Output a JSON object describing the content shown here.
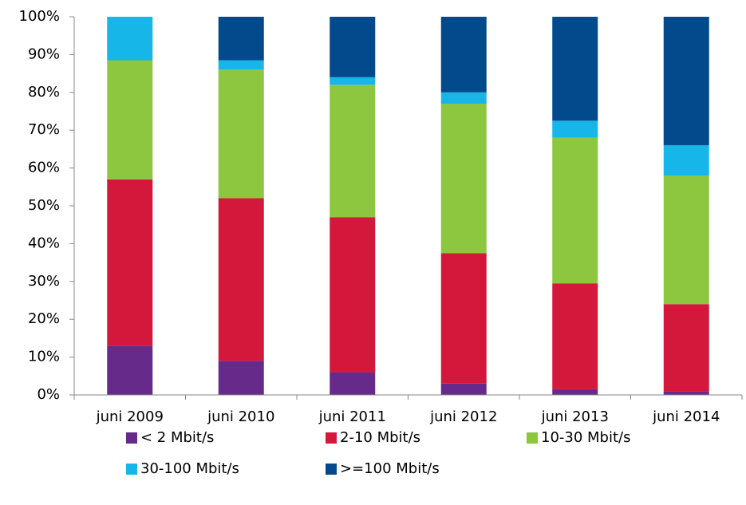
{
  "chart_data": {
    "type": "stacked_bar",
    "categories": [
      "juni 2009",
      "juni 2010",
      "juni 2011",
      "juni 2012",
      "juni 2013",
      "juni 2014"
    ],
    "series": [
      {
        "name": "< 2 Mbit/s",
        "color": "#662a8a",
        "values": [
          13,
          9,
          6,
          3,
          1.5,
          1
        ]
      },
      {
        "name": "2-10 Mbit/s",
        "color": "#d4183c",
        "values": [
          44,
          43,
          41,
          34.5,
          28,
          23
        ]
      },
      {
        "name": "10-30 Mbit/s",
        "color": "#8dc63f",
        "values": [
          31.5,
          34,
          35,
          39.5,
          38.5,
          34
        ]
      },
      {
        "name": "30-100 Mbit/s",
        "color": "#17b6e8",
        "values": [
          11.5,
          2.5,
          2,
          3,
          4.5,
          8
        ]
      },
      {
        "name": ">=100 Mbit/s",
        "color": "#034a8c",
        "values": [
          0,
          11.5,
          16,
          20,
          27.5,
          34
        ]
      }
    ],
    "ylim": [
      0,
      100
    ],
    "yticks": [
      {
        "value": 0,
        "label": "0%"
      },
      {
        "value": 10,
        "label": "10%"
      },
      {
        "value": 20,
        "label": "20%"
      },
      {
        "value": 30,
        "label": "30%"
      },
      {
        "value": 40,
        "label": "40%"
      },
      {
        "value": 50,
        "label": "50%"
      },
      {
        "value": 60,
        "label": "60%"
      },
      {
        "value": 70,
        "label": "70%"
      },
      {
        "value": 80,
        "label": "80%"
      },
      {
        "value": 90,
        "label": "90%"
      },
      {
        "value": 100,
        "label": "100%"
      }
    ],
    "grid": false
  }
}
